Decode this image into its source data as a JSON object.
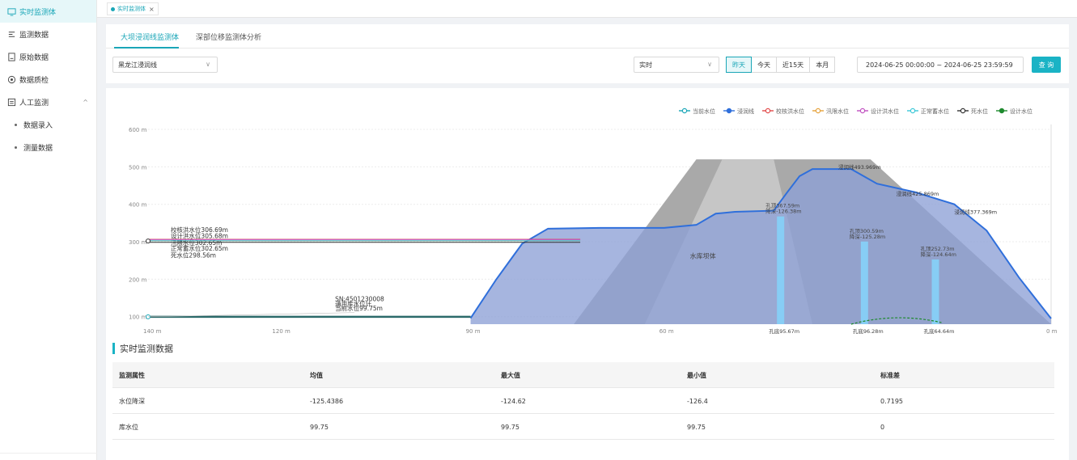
{
  "sidebar": {
    "items": [
      {
        "label": "实时监测体",
        "icon": "monitor-icon",
        "active": true
      },
      {
        "label": "监测数据",
        "icon": "data-icon"
      },
      {
        "label": "原始数据",
        "icon": "file-icon"
      },
      {
        "label": "数据质检",
        "icon": "check-icon"
      },
      {
        "label": "人工监测",
        "icon": "manual-icon",
        "caret": "^"
      }
    ],
    "subitems": [
      {
        "label": "数据录入"
      },
      {
        "label": "测量数据"
      }
    ]
  },
  "tabstrip": {
    "tab_label": "实时监测体",
    "close": "×"
  },
  "subtabs": {
    "active": "大坝浸润线监测体",
    "other": "深部位移监测体分析"
  },
  "filters": {
    "line_select": "黑龙江浸润线",
    "mode_select": "实时",
    "buttons": [
      "昨天",
      "今天",
      "近15天",
      "本月"
    ],
    "active_button": "昨天",
    "range": "2024-06-25 00:00:00 ~ 2024-06-25 23:59:59",
    "query": "查 询"
  },
  "colors": {
    "accent": "#1ab3c5",
    "seepage": "#2f6fdb",
    "fill": "#8da0d6",
    "dam": "#a9a9a9",
    "pipe": "#87cdf5"
  },
  "chart_data": {
    "type": "area",
    "xlim": [
      140,
      0
    ],
    "ylim": [
      80,
      600
    ],
    "x_ticks": [
      "140 m",
      "120 m",
      "90 m",
      "60 m",
      "0 m"
    ],
    "y_ticks": [
      "600 m",
      "500 m",
      "400 m",
      "300 m",
      "200 m",
      "100 m"
    ],
    "legend": [
      "当前水位",
      "浸润线",
      "校核洪水位",
      "汛限水位",
      "设计洪水位",
      "正常蓄水位",
      "死水位",
      "设计水位"
    ],
    "legend_colors": [
      "#1aa6b7",
      "#2f6fdb",
      "#e24b4b",
      "#e6a23c",
      "#c050c0",
      "#3cc8d8",
      "#333333",
      "#1e8a2e"
    ],
    "water_levels": [
      {
        "label": "校核洪水位306.69m",
        "value": 306.69
      },
      {
        "label": "设计洪水位305.68m",
        "value": 305.68
      },
      {
        "label": "汛限水位302.65m",
        "value": 302.65
      },
      {
        "label": "正常蓄水位302.65m",
        "value": 302.65
      },
      {
        "label": "死水位298.56m",
        "value": 298.56
      }
    ],
    "current": {
      "sn": "SN:4501230008",
      "name": "通用库水位计",
      "level": "当前水位99.75m"
    },
    "dam_label": "水库坝体",
    "seepage_labels": [
      "浸润线493.969m",
      "浸润线425.869m",
      "浸润线377.369m"
    ],
    "holes": [
      {
        "top": "孔顶367.59m",
        "depth": "降深-126.38m",
        "bottom": "孔底95.67m"
      },
      {
        "top": "孔顶300.59m",
        "depth": "降深-125.28m",
        "bottom": "孔底96.28m"
      },
      {
        "top": "孔顶252.73m",
        "depth": "降深-124.64m",
        "bottom": "孔底64.64m"
      }
    ]
  },
  "table": {
    "title": "实时监测数据",
    "headers": [
      "监测属性",
      "均值",
      "最大值",
      "最小值",
      "标准差"
    ],
    "rows": [
      [
        "水位降深",
        "-125.4386",
        "-124.62",
        "-126.4",
        "0.7195"
      ],
      [
        "库水位",
        "99.75",
        "99.75",
        "99.75",
        "0"
      ]
    ]
  }
}
